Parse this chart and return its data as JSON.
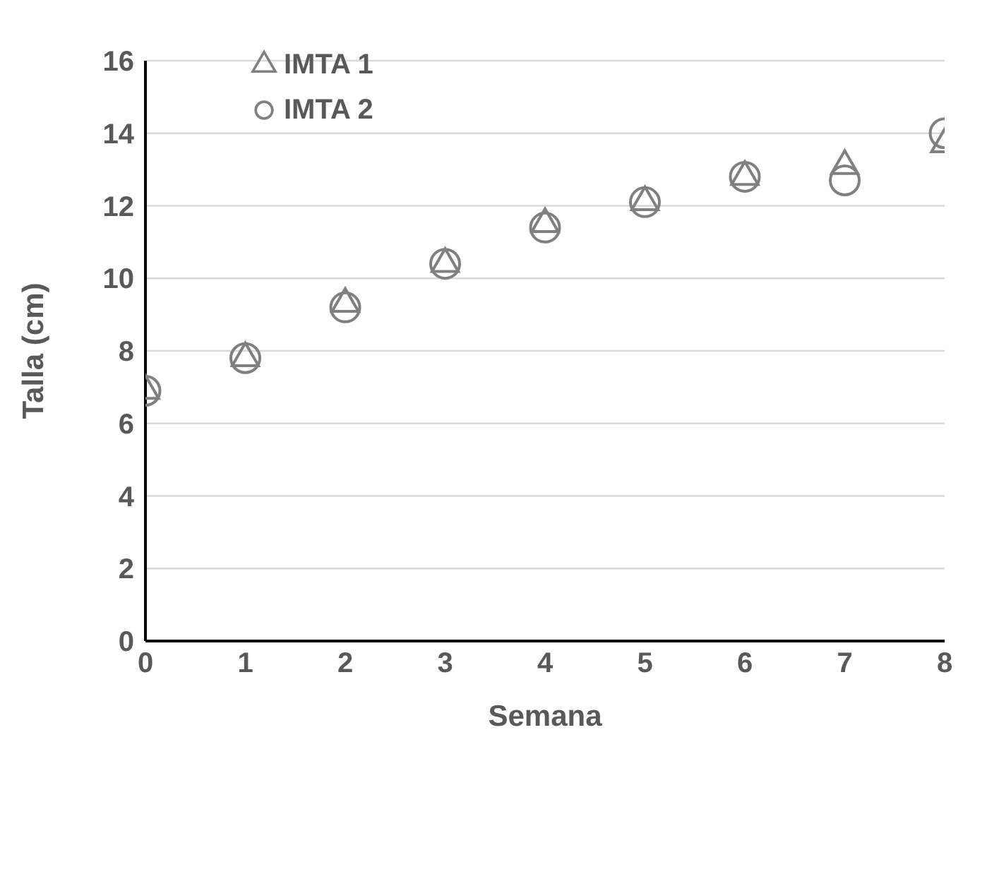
{
  "chart_data": {
    "type": "scatter",
    "xlabel": "Semana",
    "ylabel": "Talla (cm)",
    "x": [
      0,
      1,
      2,
      3,
      4,
      5,
      6,
      7,
      8
    ],
    "series": [
      {
        "name": "IMTA 1",
        "color": "#808080",
        "marker": "triangle",
        "values": [
          6.9,
          7.8,
          9.3,
          10.4,
          11.5,
          12.1,
          12.8,
          13.1,
          13.7
        ]
      },
      {
        "name": "IMTA 2",
        "color": "#808080",
        "marker": "circle",
        "values": [
          6.9,
          7.8,
          9.2,
          10.4,
          11.4,
          12.1,
          12.8,
          12.7,
          14.0
        ]
      }
    ],
    "xlim": [
      0,
      8
    ],
    "xticks": [
      0,
      1,
      2,
      3,
      4,
      5,
      6,
      7,
      8
    ],
    "ylim": [
      0,
      16
    ],
    "yticks": [
      0,
      2,
      4,
      6,
      8,
      10,
      12,
      14,
      16
    ],
    "grid": "y",
    "legend": "top left"
  }
}
